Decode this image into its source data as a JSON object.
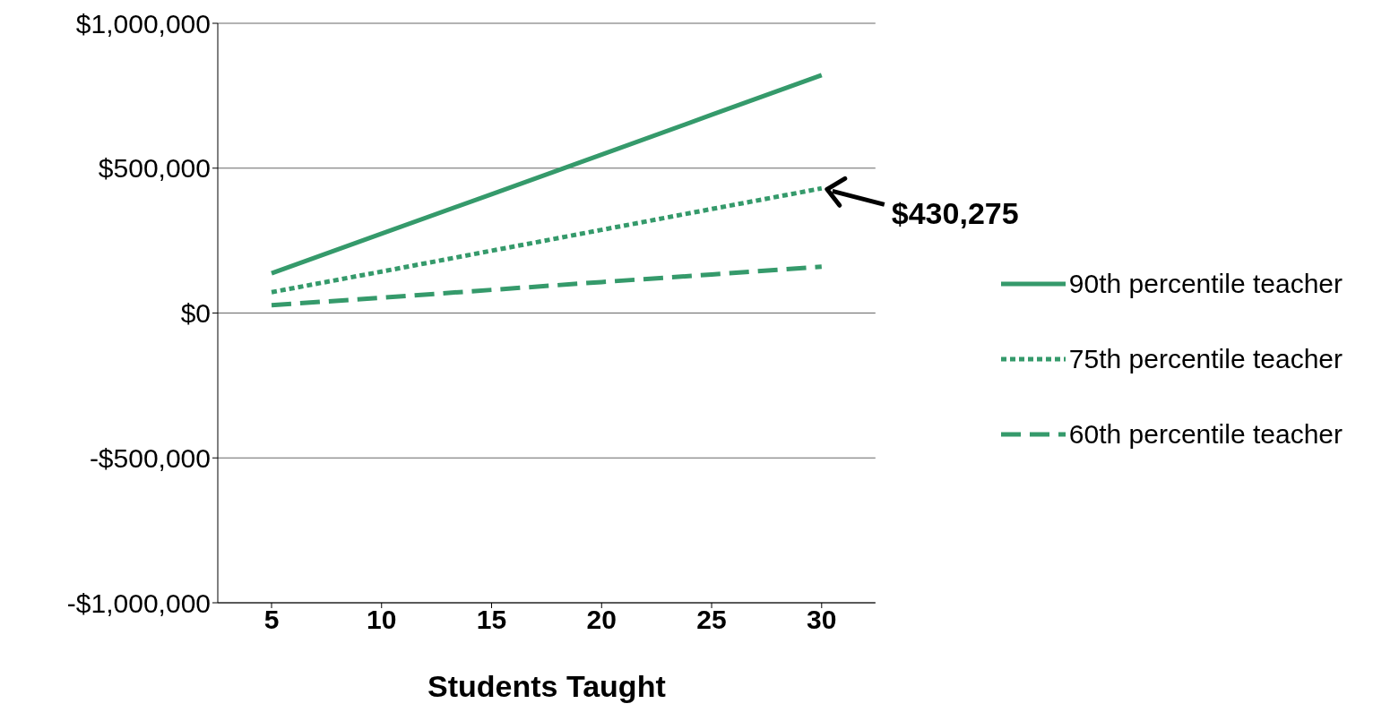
{
  "chart_data": {
    "type": "line",
    "xlabel": "Students Taught",
    "categories": [
      "5",
      "10",
      "15",
      "20",
      "25",
      "30"
    ],
    "series": [
      {
        "name": "90th percentile teacher",
        "color": "#359a6b",
        "line_style": "solid",
        "values": [
          137000,
          274000,
          410000,
          547000,
          684000,
          821000
        ]
      },
      {
        "name": "75th percentile teacher",
        "color": "#359a6b",
        "line_style": "dotted",
        "values": [
          72000,
          143000,
          215000,
          287000,
          359000,
          430275
        ]
      },
      {
        "name": "60th percentile teacher",
        "color": "#359a6b",
        "line_style": "dashed",
        "values": [
          27000,
          53000,
          80000,
          107000,
          133000,
          160000
        ]
      }
    ],
    "ylim": [
      -1000000,
      1000000
    ],
    "yticks": [
      {
        "value": -1000000,
        "label": "-$1,000,000"
      },
      {
        "value": -500000,
        "label": "-$500,000"
      },
      {
        "value": 0,
        "label": "$0"
      },
      {
        "value": 500000,
        "label": "$500,000"
      },
      {
        "value": 1000000,
        "label": "$1,000,000"
      }
    ],
    "annotations": [
      {
        "text": "$430,275",
        "x": "30",
        "y": 430275
      }
    ],
    "grid": "y",
    "legend": "right",
    "marker": "none"
  }
}
